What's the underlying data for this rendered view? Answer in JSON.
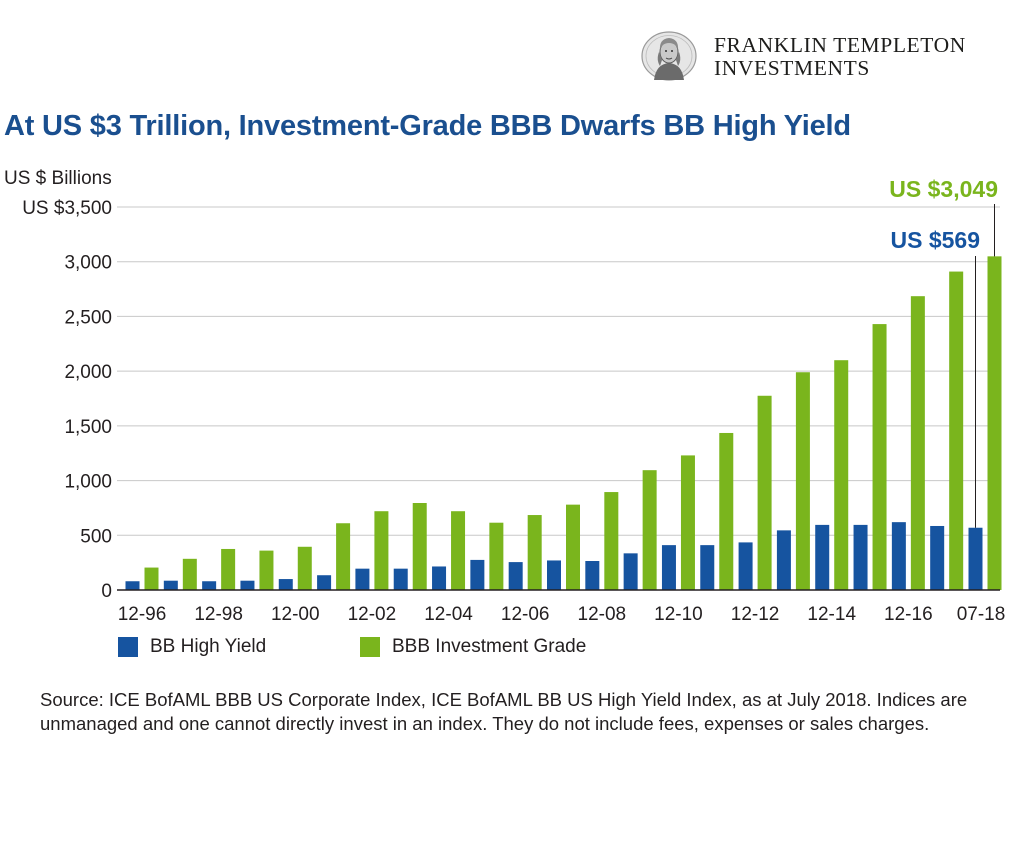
{
  "logo": {
    "line1": "FRANKLIN TEMPLETON",
    "line2": "INVESTMENTS"
  },
  "title": "At US $3 Trillion, Investment-Grade BBB Dwarfs BB High Yield",
  "colors": {
    "bb": "#1654a0",
    "bbb": "#7ab51d",
    "title": "#1a4f8f",
    "grid": "#c8c8c8",
    "axis": "#231f20"
  },
  "chart_data": {
    "type": "bar",
    "ylabel": "US $ Billions",
    "ylim": [
      0,
      3500
    ],
    "yticks": [
      {
        "value": 3500,
        "label": "US $3,500"
      },
      {
        "value": 3000,
        "label": "3,000"
      },
      {
        "value": 2500,
        "label": "2,500"
      },
      {
        "value": 2000,
        "label": "2,000"
      },
      {
        "value": 1500,
        "label": "1,500"
      },
      {
        "value": 1000,
        "label": "1,000"
      },
      {
        "value": 500,
        "label": "500"
      },
      {
        "value": 0,
        "label": "0"
      }
    ],
    "grid": true,
    "categories": [
      "12-96",
      "12-97",
      "12-98",
      "12-99",
      "12-00",
      "12-01",
      "12-02",
      "12-03",
      "12-04",
      "12-05",
      "12-06",
      "12-07",
      "12-08",
      "12-09",
      "12-10",
      "12-11",
      "12-12",
      "12-13",
      "12-14",
      "12-15",
      "12-16",
      "12-17",
      "07-18"
    ],
    "x_tick_labels": [
      "12-96",
      "12-98",
      "12-00",
      "12-02",
      "12-04",
      "12-06",
      "12-08",
      "12-10",
      "12-12",
      "12-14",
      "12-16",
      "07-18"
    ],
    "series": [
      {
        "name": "BB High Yield",
        "values": [
          80,
          85,
          80,
          85,
          100,
          135,
          195,
          195,
          215,
          275,
          255,
          270,
          265,
          335,
          410,
          410,
          435,
          545,
          595,
          595,
          620,
          585,
          569
        ]
      },
      {
        "name": "BBB Investment Grade",
        "values": [
          205,
          285,
          375,
          360,
          395,
          610,
          720,
          795,
          720,
          615,
          685,
          780,
          895,
          1095,
          1230,
          1435,
          1775,
          1990,
          2100,
          2430,
          2685,
          2910,
          3049
        ]
      }
    ],
    "legend_position": "bottom-left",
    "annotations": [
      {
        "series": "BBB Investment Grade",
        "category": "07-18",
        "text": "US $3,049"
      },
      {
        "series": "BB High Yield",
        "category": "07-18",
        "text": "US $569"
      }
    ]
  },
  "source": "Source: ICE BofAML BBB US Corporate Index, ICE BofAML BB US High Yield Index, as at July 2018. Indices are unmanaged and one cannot directly invest in an index. They do not include fees, expenses or sales charges."
}
